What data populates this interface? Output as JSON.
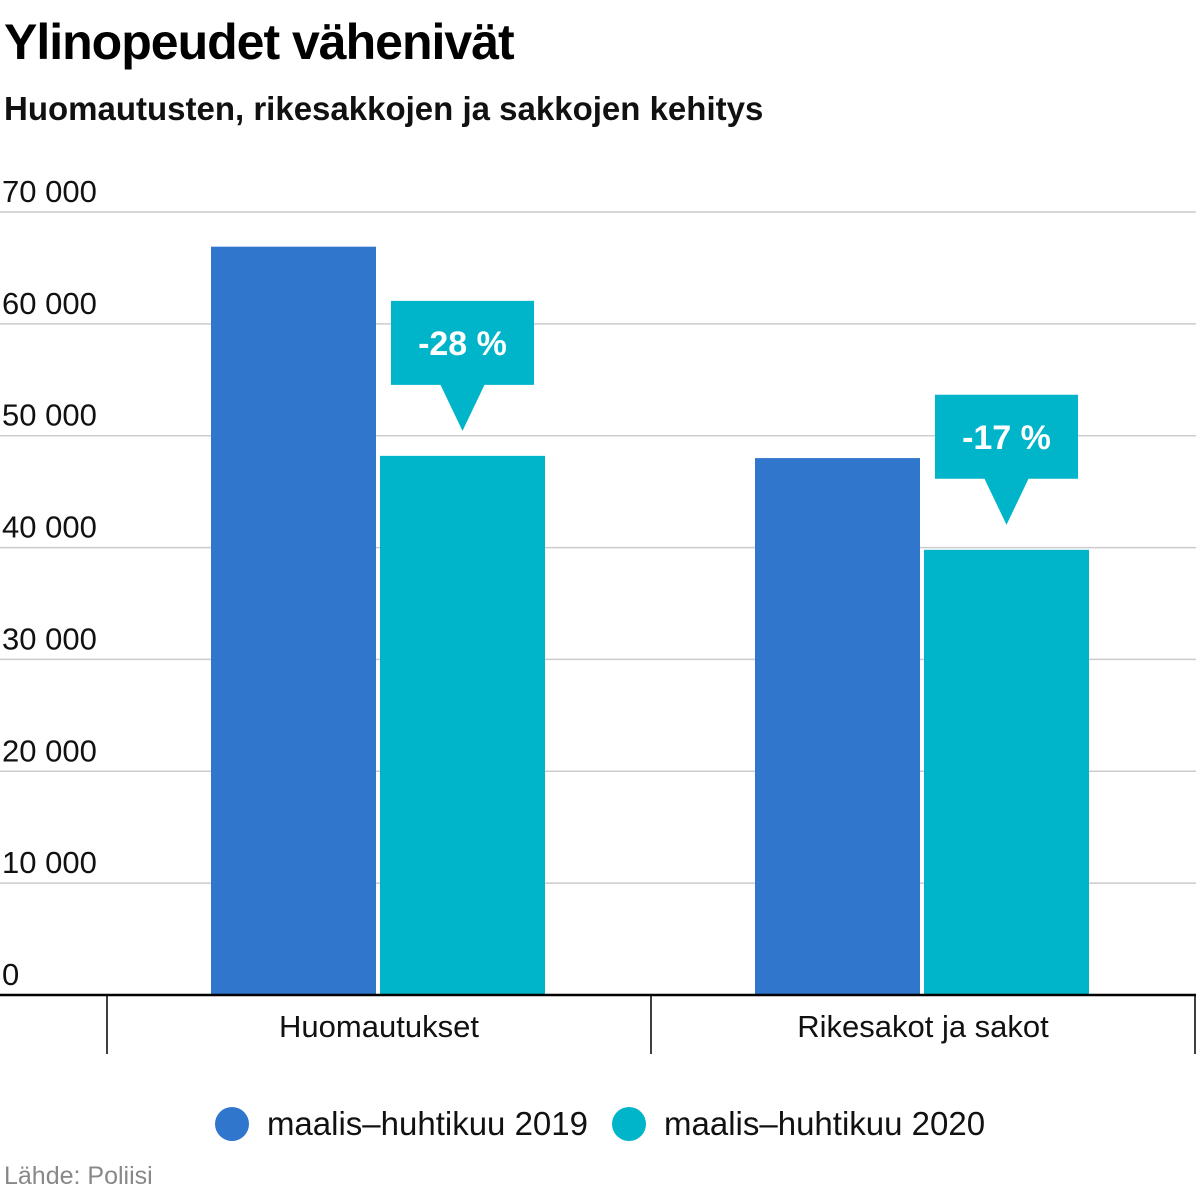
{
  "title": "Ylinopeudet vähenivät",
  "subtitle": "Huomautusten, rikesakkojen ja sakkojen kehitys",
  "source": "Lähde: Poliisi",
  "colors": {
    "series_2019": "#3076cc",
    "series_2020": "#00b4c9",
    "gridline": "#cccccc",
    "axis": "#000000"
  },
  "chart_data": {
    "type": "bar",
    "categories": [
      "Huomautukset",
      "Rikesakot ja sakot"
    ],
    "series": [
      {
        "name": "maalis–huhtikuu 2019",
        "values": [
          66900,
          48000
        ]
      },
      {
        "name": "maalis–huhtikuu 2020",
        "values": [
          48200,
          39800
        ]
      }
    ],
    "annotations": [
      {
        "category": "Huomautukset",
        "text": "-28 %"
      },
      {
        "category": "Rikesakot ja sakot",
        "text": "-17 %"
      }
    ],
    "ylim": [
      0,
      70000
    ],
    "yticks": [
      {
        "value": 0,
        "label": "0"
      },
      {
        "value": 10000,
        "label": "10 000"
      },
      {
        "value": 20000,
        "label": "20 000"
      },
      {
        "value": 30000,
        "label": "30 000"
      },
      {
        "value": 40000,
        "label": "40 000"
      },
      {
        "value": 50000,
        "label": "50 000"
      },
      {
        "value": 60000,
        "label": "60 000"
      },
      {
        "value": 70000,
        "label": "70 000"
      }
    ],
    "grid": true,
    "legend_position": "bottom"
  }
}
